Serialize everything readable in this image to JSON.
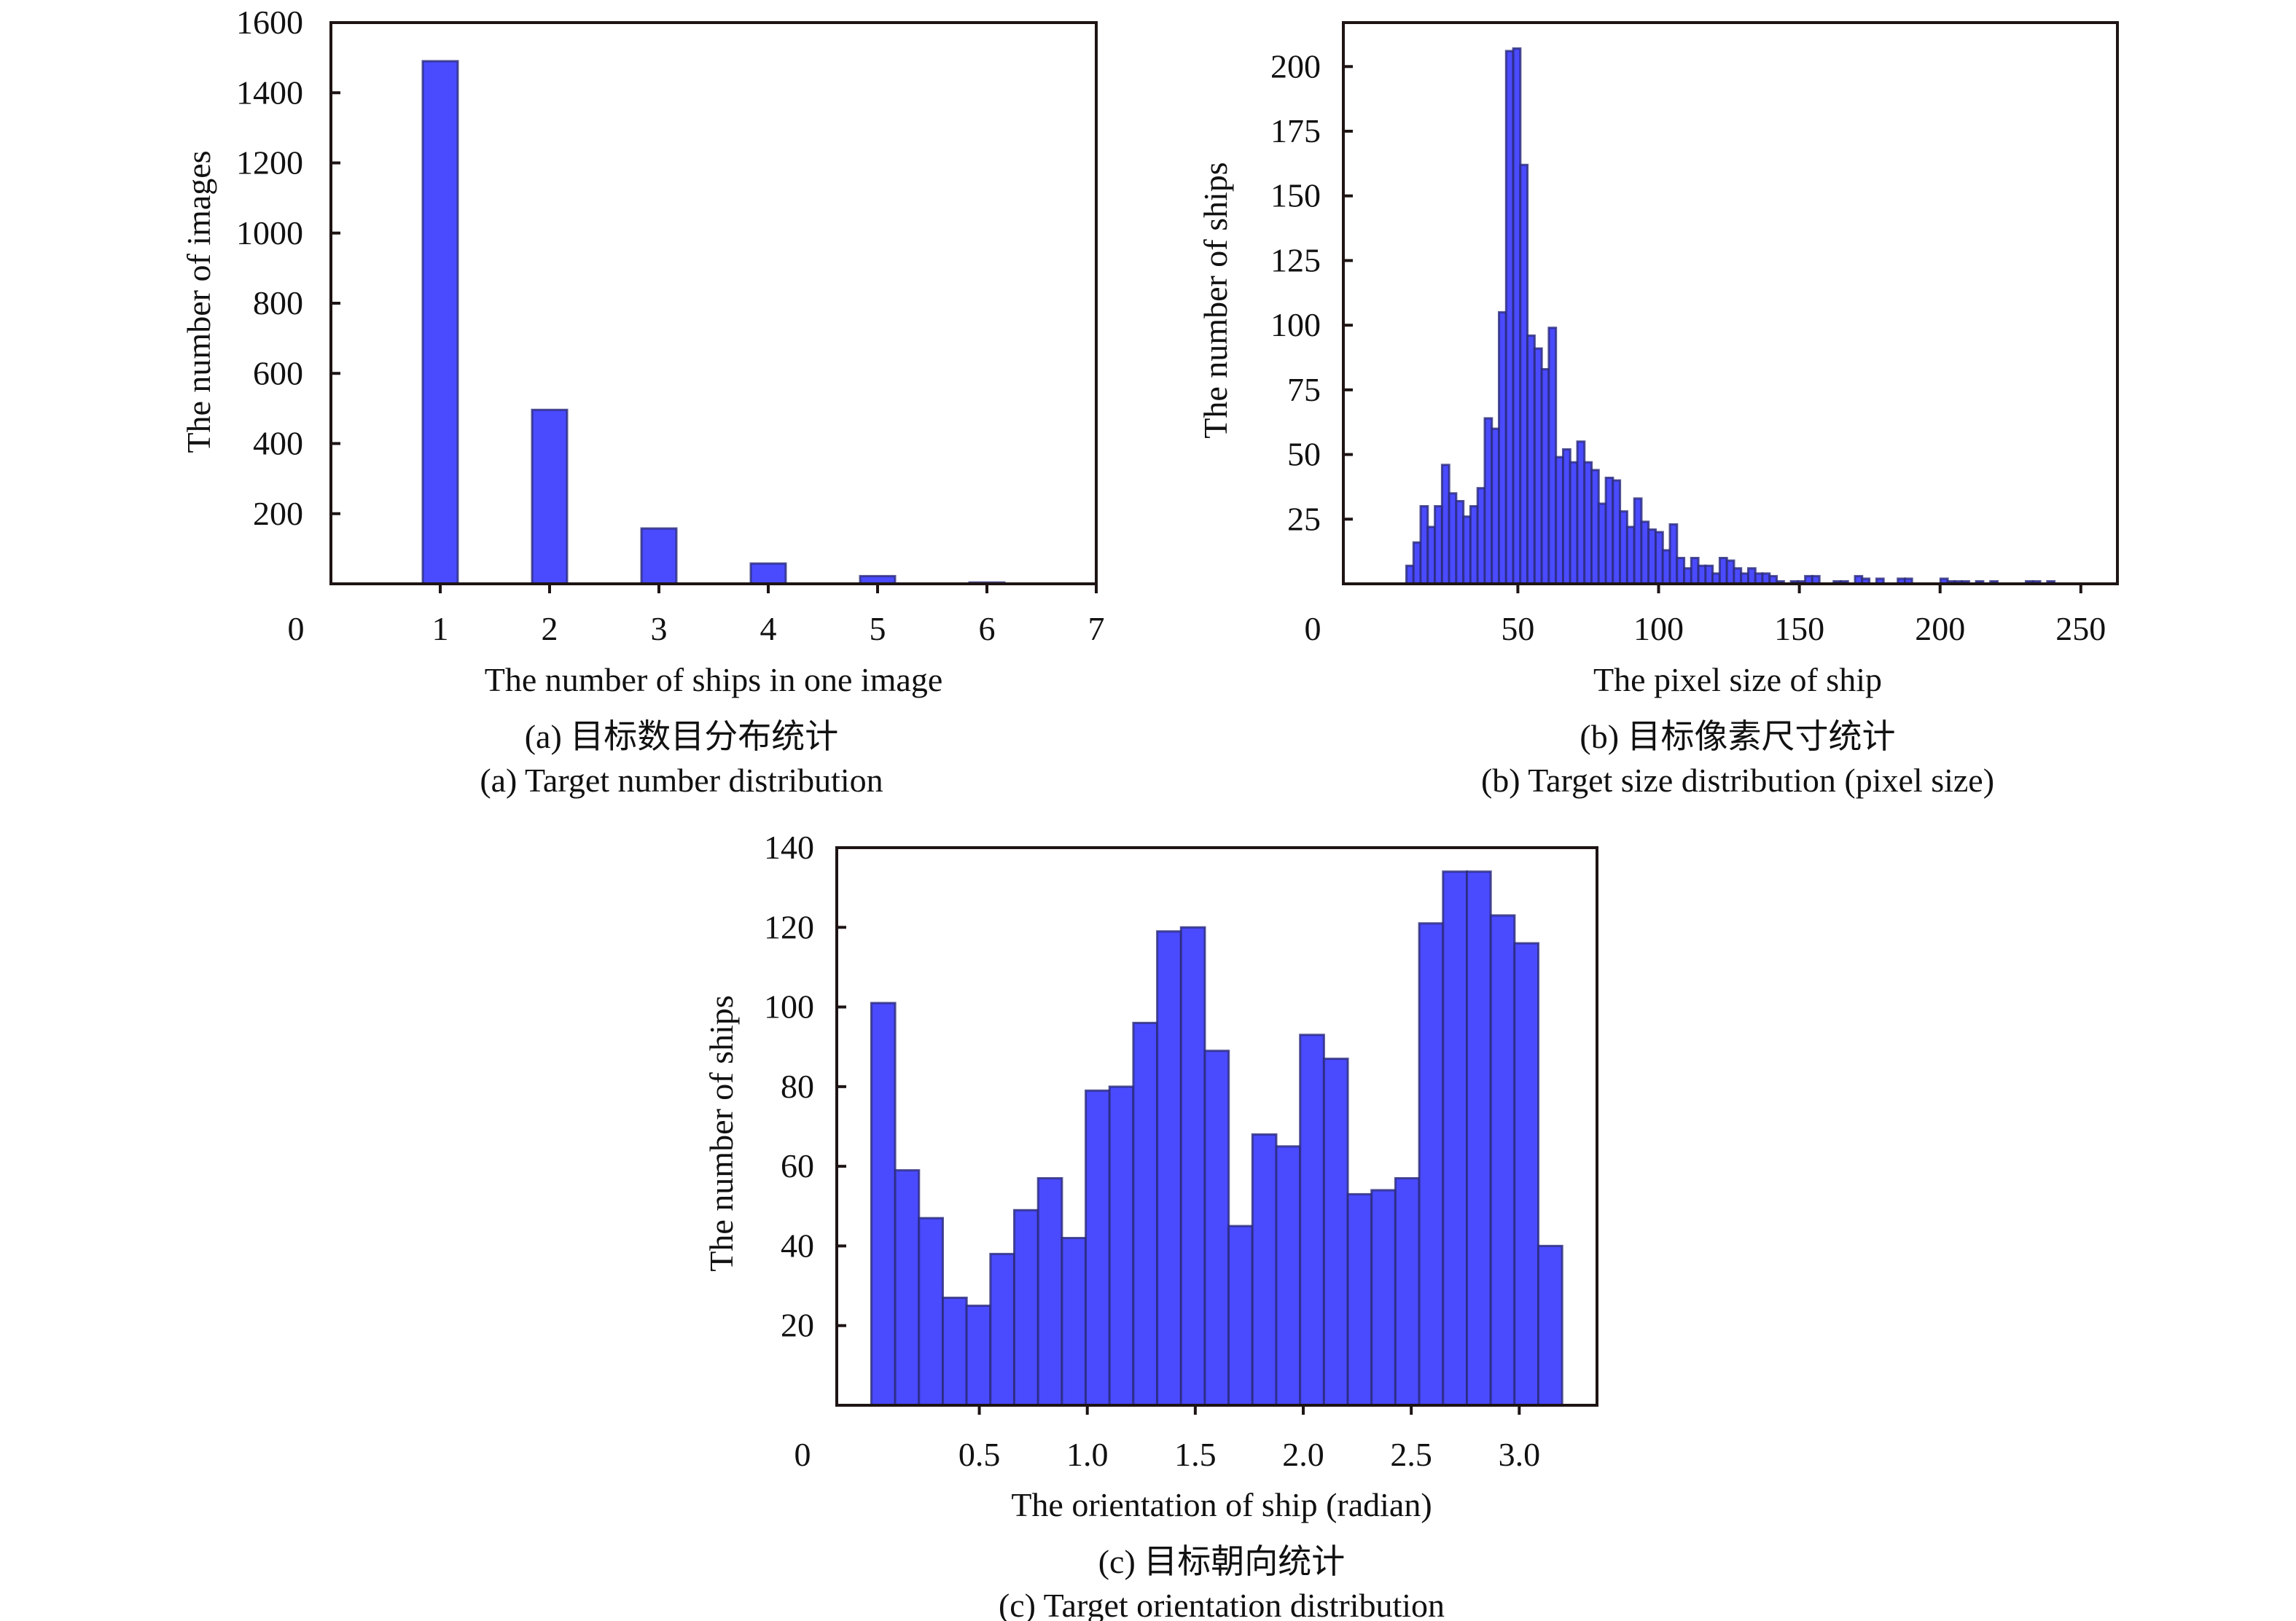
{
  "chart_data": [
    {
      "id": "a",
      "type": "bar",
      "title": "",
      "xlabel": "The number of ships in one image",
      "ylabel": "The number of images",
      "caption_zh": "(a) 目标数目分布统计",
      "caption_en": "(a) Target number distribution",
      "categories": [
        1,
        2,
        3,
        4,
        5,
        6
      ],
      "values": [
        1490,
        496,
        158,
        58,
        22,
        4
      ],
      "xlim": [
        0,
        7
      ],
      "ylim": [
        0,
        1600
      ],
      "xticks": [
        1,
        2,
        3,
        4,
        5,
        6,
        7
      ],
      "xtick_labels": [
        "1",
        "2",
        "3",
        "4",
        "5",
        "6",
        "7"
      ],
      "yticks": [
        200,
        400,
        600,
        800,
        1000,
        1200,
        1400,
        1600
      ],
      "ytick_labels": [
        "200",
        "400",
        "600",
        "800",
        "1000",
        "1200",
        "1400",
        "1600"
      ],
      "origin_label": "0",
      "grid": false,
      "color": "#4a4aff"
    },
    {
      "id": "b",
      "type": "bar",
      "subtype": "histogram",
      "title": "",
      "xlabel": "The pixel size of ship",
      "ylabel": "The number of ships",
      "caption_zh": "(b) 目标像素尺寸统计",
      "caption_en": "(b) Target size distribution (pixel size)",
      "bin_start": 10.4,
      "bin_width": 2.53,
      "values": [
        7,
        16,
        30,
        22,
        30,
        46,
        35,
        32,
        26,
        30,
        37,
        64,
        60,
        105,
        206,
        207,
        162,
        96,
        91,
        83,
        99,
        49,
        52,
        47,
        55,
        47,
        44,
        31,
        41,
        40,
        28,
        22,
        33,
        24,
        21,
        20,
        13,
        23,
        10,
        6,
        10,
        7,
        7,
        4,
        10,
        9,
        6,
        4,
        6,
        4,
        4,
        3,
        1,
        0,
        1,
        1,
        3,
        3,
        0,
        0,
        1,
        1,
        0,
        3,
        2,
        0,
        2,
        0,
        0,
        2,
        2,
        0,
        0,
        0,
        0,
        2,
        1,
        1,
        1,
        0,
        1,
        0,
        1,
        0,
        0,
        0,
        0,
        1,
        1,
        0,
        1
      ],
      "xlim": [
        -12,
        263
      ],
      "ylim": [
        0,
        217
      ],
      "xticks": [
        50,
        100,
        150,
        200,
        250
      ],
      "xtick_labels": [
        "50",
        "100",
        "150",
        "200",
        "250"
      ],
      "yticks": [
        25,
        50,
        75,
        100,
        125,
        150,
        175,
        200
      ],
      "ytick_labels": [
        "25",
        "50",
        "75",
        "100",
        "125",
        "150",
        "175",
        "200"
      ],
      "origin_label": "0",
      "grid": false,
      "color": "#4a4aff"
    },
    {
      "id": "c",
      "type": "bar",
      "subtype": "histogram",
      "title": "",
      "xlabel": "The orientation of ship (radian)",
      "ylabel": "The number of ships",
      "caption_zh": "(c) 目标朝向统计",
      "caption_en": "(c) Target orientation distribution",
      "bin_start": 0,
      "bin_width": 0.1103,
      "values": [
        101,
        59,
        47,
        27,
        25,
        38,
        49,
        57,
        42,
        79,
        80,
        96,
        119,
        120,
        89,
        45,
        68,
        65,
        93,
        87,
        53,
        54,
        57,
        121,
        134,
        134,
        123,
        116,
        40
      ],
      "xlim": [
        -0.16,
        3.36
      ],
      "ylim": [
        0,
        140
      ],
      "xticks": [
        0.5,
        1.0,
        1.5,
        2.0,
        2.5,
        3.0
      ],
      "xtick_labels": [
        "0.5",
        "1.0",
        "1.5",
        "2.0",
        "2.5",
        "3.0"
      ],
      "yticks": [
        20,
        40,
        60,
        80,
        100,
        120,
        140
      ],
      "ytick_labels": [
        "20",
        "40",
        "60",
        "80",
        "100",
        "120",
        "140"
      ],
      "origin_label": "0",
      "grid": false,
      "color": "#4a4aff"
    }
  ]
}
